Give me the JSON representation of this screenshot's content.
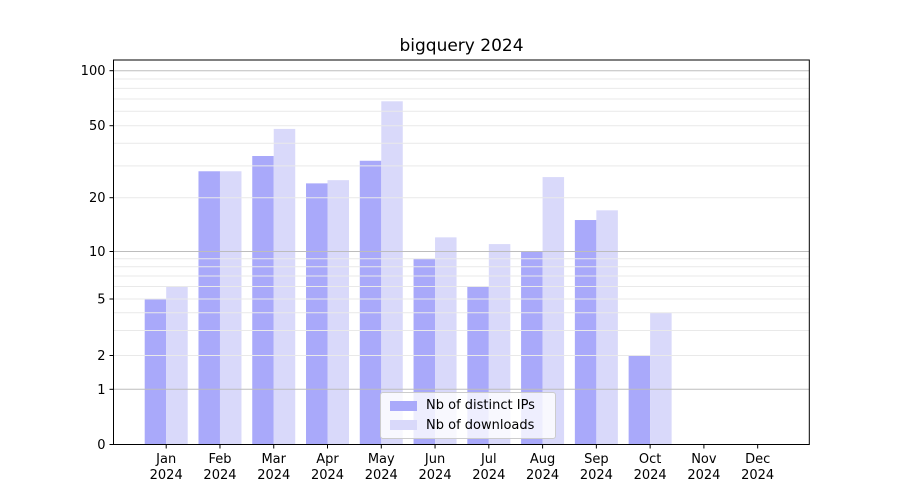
{
  "chart_data": {
    "type": "bar",
    "title": "bigquery 2024",
    "categories": [
      "Jan",
      "Feb",
      "Mar",
      "Apr",
      "May",
      "Jun",
      "Jul",
      "Aug",
      "Sep",
      "Oct",
      "Nov",
      "Dec"
    ],
    "year_label": "2024",
    "series": [
      {
        "name": "Nb of distinct IPs",
        "color": "#a9a9fa",
        "values": [
          5,
          28,
          34,
          24,
          32,
          9,
          6,
          10,
          15,
          2,
          0,
          0
        ]
      },
      {
        "name": "Nb of downloads",
        "color": "#d9d9fa",
        "values": [
          6,
          28,
          48,
          25,
          68,
          12,
          11,
          26,
          17,
          4,
          0,
          0
        ]
      }
    ],
    "xlabel": "",
    "ylabel": "",
    "yscale": "symlog-like",
    "y_ticks": [
      0,
      1,
      2,
      5,
      10,
      20,
      50,
      100
    ],
    "ylim": [
      0,
      116
    ],
    "grid": true,
    "legend_position": "lower center"
  },
  "colors": {
    "bar_distinct_ips": "#a9a9fa",
    "bar_downloads": "#d9d9fa",
    "grid_major": "#bdbdbd",
    "grid_minor": "#e9e9e9",
    "axis": "#000000"
  }
}
